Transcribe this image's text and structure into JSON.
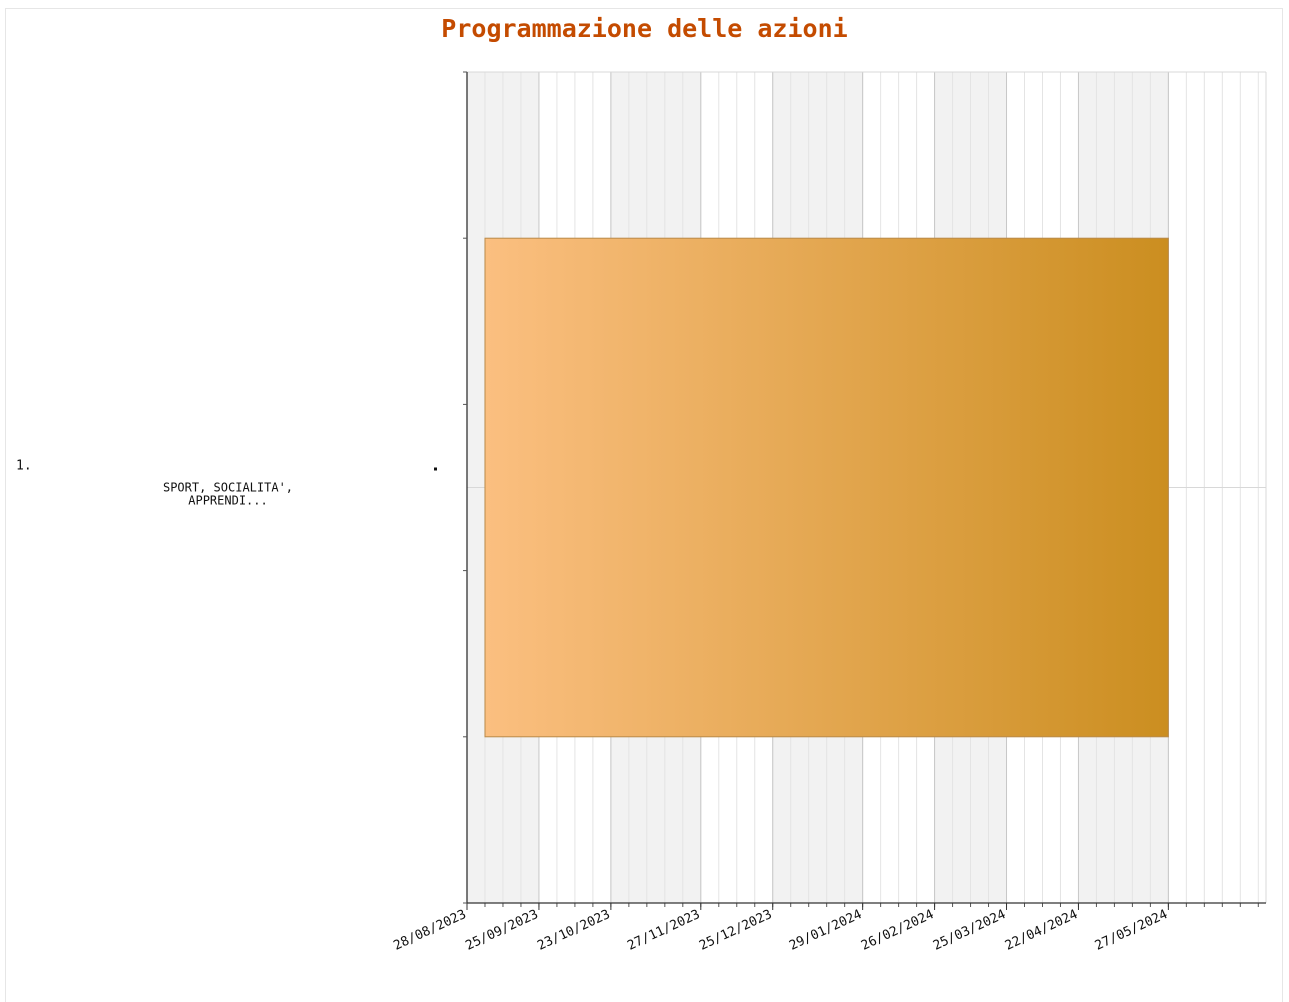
{
  "chart_data": {
    "type": "gantt",
    "title": "Programmazione delle azioni",
    "tasks": [
      {
        "index": "1.",
        "label_lines": [
          "SPORT, SOCIALITA',",
          "APPRENDI..."
        ],
        "start": "2023-09-04",
        "end": "2024-05-27",
        "color_start": "#fbbf80",
        "color_end": "#cb8e20"
      }
    ],
    "x_ticks": [
      "28/08/2023",
      "25/09/2023",
      "23/10/2023",
      "27/11/2023",
      "25/12/2023",
      "29/01/2024",
      "26/02/2024",
      "25/03/2024",
      "22/04/2024",
      "27/05/2024"
    ],
    "xlim": [
      "2023-08-28",
      "2024-07-04"
    ],
    "grid": true,
    "band_color": "#f2f2f2"
  }
}
